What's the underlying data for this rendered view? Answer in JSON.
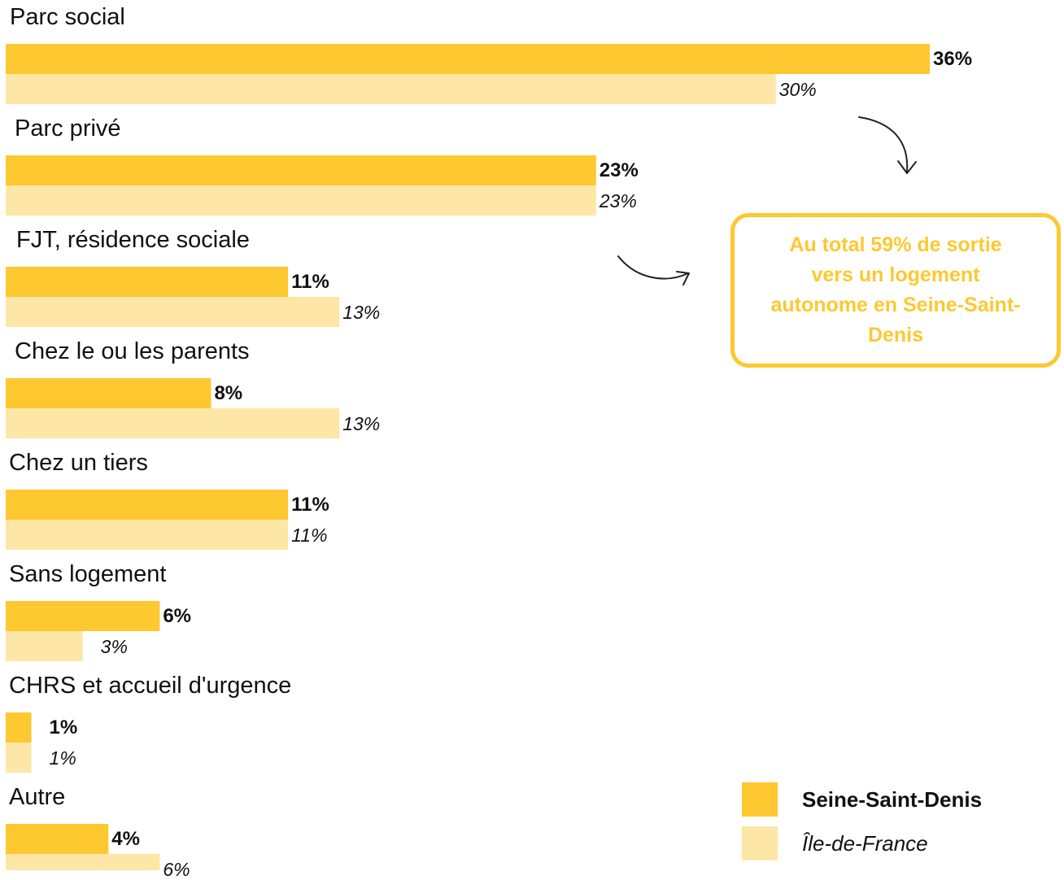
{
  "chart_data": {
    "type": "bar",
    "orientation": "horizontal",
    "categories": [
      "Parc social",
      "Parc privé",
      "FJT, résidence sociale",
      "Chez le ou les parents",
      "Chez un tiers",
      "Sans logement",
      "CHRS et accueil d'urgence",
      "Autre"
    ],
    "series": [
      {
        "name": "Seine-Saint-Denis",
        "values": [
          36,
          23,
          11,
          8,
          11,
          6,
          1,
          4
        ],
        "labels": [
          "36%",
          "23%",
          "11%",
          "8%",
          "11%",
          "6%",
          "1%",
          "4%"
        ],
        "color": "#fdc830"
      },
      {
        "name": "Île-de-France",
        "values": [
          30,
          23,
          13,
          13,
          11,
          3,
          1,
          6
        ],
        "labels": [
          "30%",
          "23%",
          "13%",
          "13%",
          "11%",
          "3%",
          "1%",
          "6%"
        ],
        "color": "#fee6a6"
      }
    ],
    "title": "",
    "xlabel": "",
    "ylabel": "",
    "grid": false,
    "legend": "bottom-right"
  },
  "callout": {
    "text": "Au total 59% de sortie vers un logement autonome en Seine-Saint-Denis"
  },
  "legend": {
    "primary_label": "Seine-Saint-Denis",
    "secondary_label": "Île-de-France"
  },
  "colors": {
    "primary": "#fdc830",
    "secondary": "#fee6a6",
    "text": "#111111"
  }
}
